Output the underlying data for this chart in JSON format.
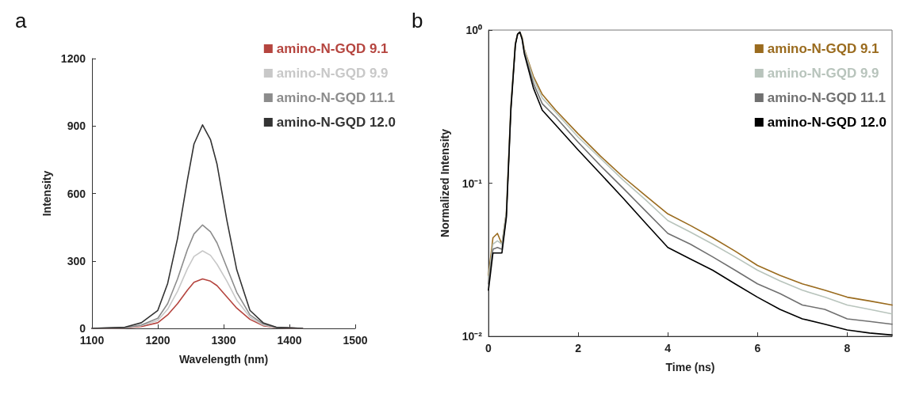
{
  "chart_data": [
    {
      "type": "line",
      "title": "a",
      "xlabel": "Wavelength (nm)",
      "ylabel": "Intensity",
      "xlim": [
        1100,
        1500
      ],
      "xticks": [
        1100,
        1200,
        1300,
        1400,
        1500
      ],
      "ylim": [
        0,
        1200
      ],
      "yticks": [
        0,
        300,
        600,
        900,
        1200
      ],
      "grid": false,
      "legend": "top right",
      "marker": "none",
      "line_style": "solid",
      "x": [
        1100,
        1150,
        1175,
        1200,
        1215,
        1230,
        1245,
        1255,
        1268,
        1280,
        1290,
        1305,
        1320,
        1340,
        1360,
        1380,
        1420
      ],
      "series": [
        {
          "name": "amino-N-GQD 9.1",
          "color": "#b5453f",
          "values": [
            0,
            2,
            8,
            25,
            60,
            110,
            170,
            205,
            220,
            210,
            190,
            140,
            90,
            40,
            12,
            3,
            0
          ]
        },
        {
          "name": "amino-N-GQD 9.9",
          "color": "#c8c8c8",
          "values": [
            0,
            2,
            12,
            35,
            85,
            165,
            265,
            320,
            345,
            325,
            285,
            210,
            125,
            50,
            15,
            3,
            0
          ]
        },
        {
          "name": "amino-N-GQD 11.1",
          "color": "#8c8c8c",
          "values": [
            0,
            3,
            15,
            45,
            110,
            220,
            350,
            420,
            460,
            430,
            380,
            270,
            160,
            60,
            20,
            4,
            0
          ]
        },
        {
          "name": "amino-N-GQD 12.0",
          "color": "#333333",
          "values": [
            0,
            5,
            25,
            80,
            200,
            400,
            660,
            820,
            905,
            840,
            730,
            480,
            260,
            80,
            25,
            5,
            0
          ]
        }
      ]
    },
    {
      "type": "line",
      "title": "b",
      "xlabel": "Time (ns)",
      "ylabel": "Normalized Intensity",
      "log": "y",
      "xlim": [
        0,
        9
      ],
      "xticks": [
        0,
        2,
        4,
        6,
        8
      ],
      "ylim": [
        0.01,
        1
      ],
      "yticks": [
        {
          "value": 0.01,
          "label": "10⁻²"
        },
        {
          "value": 0.1,
          "label": "10⁻¹"
        },
        {
          "value": 1,
          "label": "10⁰"
        }
      ],
      "grid": false,
      "legend": "top right",
      "marker": "none",
      "line_style": "solid",
      "x": [
        0,
        0.1,
        0.2,
        0.3,
        0.4,
        0.5,
        0.6,
        0.65,
        0.7,
        0.75,
        0.8,
        1.0,
        1.2,
        1.5,
        2,
        2.5,
        3,
        3.5,
        4,
        4.5,
        5,
        5.5,
        6,
        6.5,
        7,
        7.5,
        8,
        8.5,
        9
      ],
      "series": [
        {
          "name": "amino-N-GQD 9.1",
          "color": "#9a6b1e",
          "values": [
            0.025,
            0.044,
            0.047,
            0.04,
            0.065,
            0.32,
            0.82,
            0.94,
            0.97,
            0.9,
            0.75,
            0.5,
            0.38,
            0.3,
            0.21,
            0.15,
            0.11,
            0.083,
            0.063,
            0.053,
            0.044,
            0.036,
            0.029,
            0.025,
            0.022,
            0.02,
            0.018,
            0.017,
            0.016
          ]
        },
        {
          "name": "amino-N-GQD 9.9",
          "color": "#b8c4bc",
          "values": [
            0.024,
            0.04,
            0.042,
            0.04,
            0.065,
            0.32,
            0.82,
            0.94,
            0.97,
            0.89,
            0.74,
            0.48,
            0.36,
            0.29,
            0.2,
            0.145,
            0.105,
            0.078,
            0.057,
            0.048,
            0.04,
            0.033,
            0.027,
            0.023,
            0.02,
            0.018,
            0.016,
            0.015,
            0.014
          ]
        },
        {
          "name": "amino-N-GQD 11.1",
          "color": "#707070",
          "values": [
            0.022,
            0.037,
            0.038,
            0.037,
            0.062,
            0.31,
            0.81,
            0.94,
            0.97,
            0.88,
            0.72,
            0.45,
            0.33,
            0.27,
            0.185,
            0.13,
            0.093,
            0.066,
            0.047,
            0.04,
            0.033,
            0.027,
            0.022,
            0.019,
            0.016,
            0.015,
            0.013,
            0.0125,
            0.012
          ]
        },
        {
          "name": "amino-N-GQD 12.0",
          "color": "#000000",
          "values": [
            0.02,
            0.035,
            0.035,
            0.035,
            0.06,
            0.3,
            0.8,
            0.94,
            0.97,
            0.87,
            0.7,
            0.42,
            0.3,
            0.24,
            0.165,
            0.115,
            0.08,
            0.055,
            0.038,
            0.032,
            0.027,
            0.022,
            0.018,
            0.015,
            0.013,
            0.012,
            0.011,
            0.0105,
            0.0102
          ]
        }
      ]
    }
  ]
}
